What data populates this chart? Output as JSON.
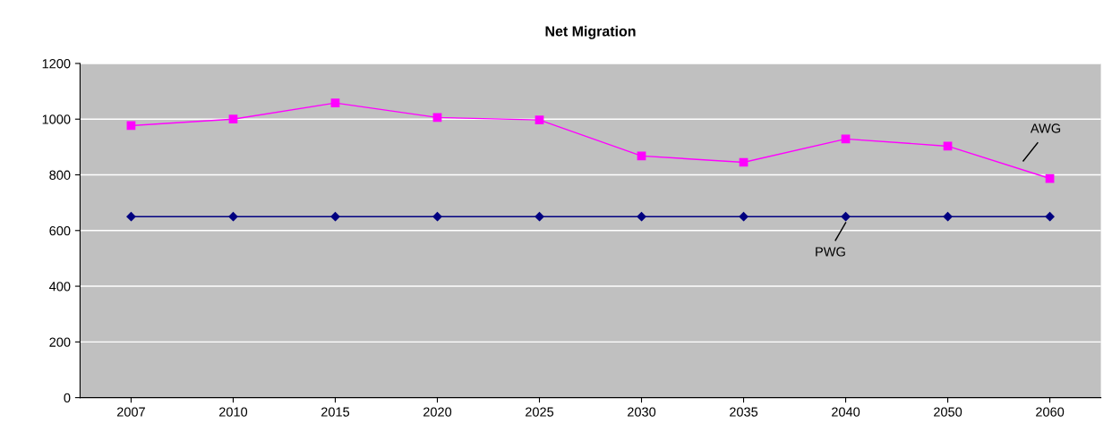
{
  "chart_data": {
    "type": "line",
    "title": "Net Migration",
    "categories": [
      "2007",
      "2010",
      "2015",
      "2020",
      "2025",
      "2030",
      "2035",
      "2040",
      "2050",
      "2060"
    ],
    "series": [
      {
        "name": "AWG",
        "color": "#ff00ff",
        "marker": "square",
        "values": [
          977,
          1000,
          1058,
          1006,
          997,
          868,
          845,
          929,
          903,
          787
        ]
      },
      {
        "name": "PWG",
        "color": "#000080",
        "marker": "diamond",
        "values": [
          650,
          650,
          650,
          650,
          650,
          650,
          650,
          650,
          650,
          650
        ]
      }
    ],
    "ylim": [
      0,
      1200
    ],
    "yticks": [
      0,
      200,
      400,
      600,
      800,
      1000,
      1200
    ],
    "grid": "y",
    "legend": false
  }
}
